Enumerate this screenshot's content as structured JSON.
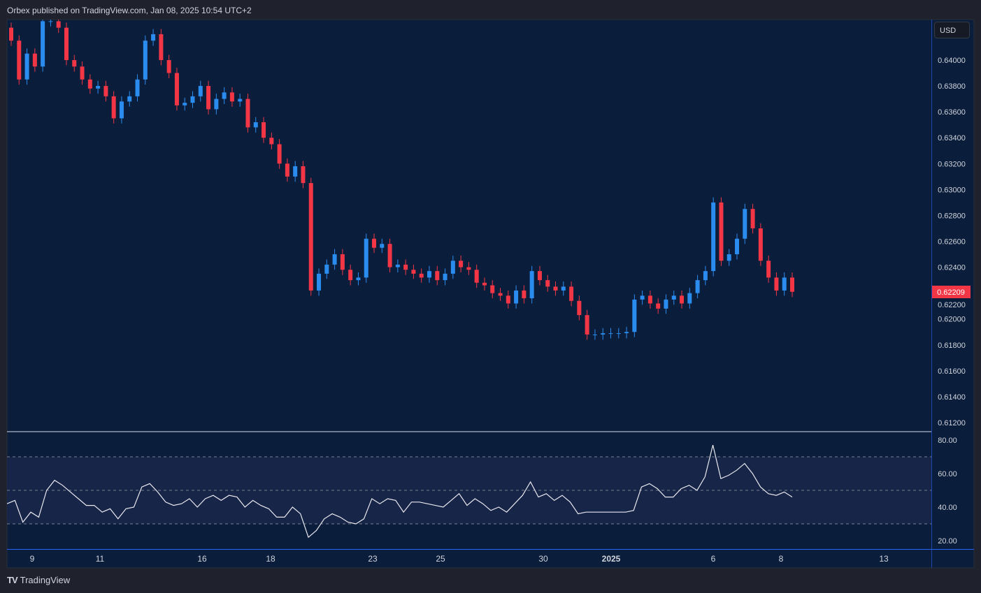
{
  "header": {
    "title": "Orbex published on TradingView.com, Jan 08, 2025 10:54 UTC+2"
  },
  "currency_button": "USD",
  "footer": {
    "logo_text": "TradingView"
  },
  "colors": {
    "up": "#2b8cf0",
    "down": "#f23645",
    "background": "#0a1d3b",
    "rsi_band": "#172548",
    "rsi_line": "#e8e8ee"
  },
  "chart_data": [
    {
      "type": "candlestick",
      "price_axis": {
        "ticks": [
          "0.64000",
          "0.63800",
          "0.63600",
          "0.63400",
          "0.63200",
          "0.63000",
          "0.62800",
          "0.62600",
          "0.62400",
          "0.62200",
          "0.62000",
          "0.61800",
          "0.61600",
          "0.61400",
          "0.61200"
        ],
        "ylim": [
          0.6115,
          0.6431
        ]
      },
      "last_price": "0.62209",
      "x_axis": {
        "ticks": [
          "9",
          "11",
          "16",
          "18",
          "23",
          "25",
          "30",
          "2025",
          "6",
          "8",
          "13"
        ]
      },
      "close": [
        0.6415,
        0.6385,
        0.6405,
        0.6395,
        0.643,
        0.643,
        0.6425,
        0.64,
        0.6395,
        0.6385,
        0.6378,
        0.638,
        0.6372,
        0.6355,
        0.6368,
        0.6372,
        0.6385,
        0.6415,
        0.642,
        0.64,
        0.639,
        0.6365,
        0.6367,
        0.6372,
        0.638,
        0.6362,
        0.637,
        0.6375,
        0.6368,
        0.637,
        0.6348,
        0.6352,
        0.634,
        0.6335,
        0.632,
        0.631,
        0.6318,
        0.6305,
        0.6222,
        0.6235,
        0.6242,
        0.625,
        0.6238,
        0.623,
        0.6232,
        0.6262,
        0.6255,
        0.6258,
        0.624,
        0.6242,
        0.6238,
        0.6235,
        0.6232,
        0.6237,
        0.623,
        0.6235,
        0.6245,
        0.624,
        0.6238,
        0.6228,
        0.6226,
        0.622,
        0.6218,
        0.6212,
        0.6222,
        0.6216,
        0.6237,
        0.623,
        0.6225,
        0.6222,
        0.6225,
        0.6214,
        0.6203,
        0.6188,
        0.6188,
        0.6189,
        0.6189,
        0.6189,
        0.619,
        0.6215,
        0.6218,
        0.6212,
        0.6208,
        0.6215,
        0.6218,
        0.6212,
        0.622,
        0.623,
        0.6237,
        0.629,
        0.6245,
        0.625,
        0.6262,
        0.6285,
        0.627,
        0.6245,
        0.6232,
        0.6222,
        0.6232,
        0.6221
      ]
    },
    {
      "type": "line",
      "indicator_axis": {
        "ticks": [
          "80.00",
          "60.00",
          "40.00",
          "20.00"
        ],
        "ylim": [
          16,
          82
        ]
      },
      "levels": [
        70,
        50,
        30
      ],
      "values": [
        42,
        44,
        31,
        37,
        34,
        50,
        56,
        53,
        49,
        45,
        41,
        41,
        37,
        39,
        33,
        39,
        40,
        52,
        54,
        49,
        43,
        41,
        42,
        45,
        40,
        45,
        47,
        44,
        47,
        46,
        40,
        44,
        41,
        39,
        34,
        34,
        40,
        36,
        22,
        26,
        33,
        36,
        34,
        31,
        30,
        33,
        45,
        42,
        45,
        44,
        37,
        43,
        43,
        42,
        41,
        40,
        44,
        48,
        41,
        45,
        42,
        38,
        40,
        37,
        42,
        47,
        55,
        46,
        48,
        44,
        47,
        43,
        36,
        37,
        37,
        37,
        37,
        37,
        37,
        38,
        52,
        54,
        51,
        46,
        46,
        51,
        53,
        50,
        58,
        77,
        57,
        59,
        62,
        66,
        60,
        52,
        48,
        47,
        49,
        46
      ]
    }
  ]
}
